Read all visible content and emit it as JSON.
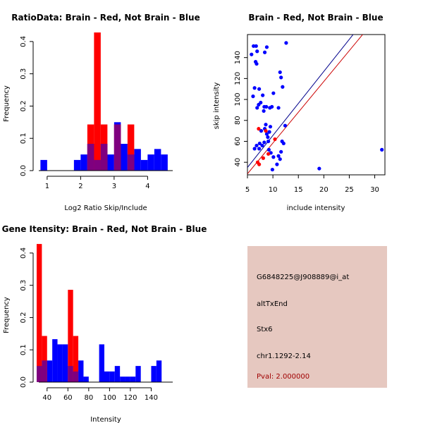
{
  "chart_data": [
    {
      "type": "histogram",
      "title": "RatioData: Brain - Red, Not Brain - Blue",
      "xlabel": "Log2 Ratio Skip/Include",
      "ylabel": "Frequency",
      "xlim": [
        0.75,
        4.75
      ],
      "ylim": [
        0,
        0.45
      ],
      "xticks": [
        1,
        2,
        3,
        4
      ],
      "xtick_labels": [
        "1",
        "2",
        "3",
        "4"
      ],
      "yticks": [
        0.0,
        0.1,
        0.2,
        0.3,
        0.4
      ],
      "ytick_labels": [
        "0.0",
        "0.1",
        "0.2",
        "0.3",
        "0.4"
      ],
      "bin_width": 0.2,
      "series": [
        {
          "name": "Not Brain",
          "color": "#0000ff",
          "bin_starts": [
            0.8,
            1.0,
            1.2,
            1.4,
            1.6,
            1.8,
            2.0,
            2.2,
            2.4,
            2.6,
            2.8,
            3.0,
            3.2,
            3.4,
            3.6,
            3.8,
            4.0,
            4.2,
            4.4
          ],
          "values": [
            0.033,
            0,
            0,
            0,
            0,
            0.033,
            0.05,
            0.083,
            0.033,
            0.083,
            0.05,
            0.15,
            0.083,
            0.05,
            0.067,
            0.033,
            0.05,
            0.067,
            0.05
          ]
        },
        {
          "name": "Brain",
          "color": "#ff0000",
          "bin_starts": [
            2.2,
            2.4,
            2.6,
            3.0,
            3.4
          ],
          "values": [
            0.143,
            0.428,
            0.143,
            0.143,
            0.143
          ]
        }
      ],
      "overlap_color": "#7f007f"
    },
    {
      "type": "scatter",
      "title": "Brain - Red, Not Brain - Blue",
      "xlabel": "include intensity",
      "ylabel": "skip intensity",
      "xlim": [
        5,
        32
      ],
      "ylim": [
        28,
        162
      ],
      "xticks": [
        5,
        10,
        15,
        20,
        25,
        30
      ],
      "xtick_labels": [
        "5",
        "10",
        "15",
        "20",
        "25",
        "30"
      ],
      "yticks": [
        40,
        60,
        80,
        100,
        120,
        140
      ],
      "ytick_labels": [
        "40",
        "60",
        "80",
        "100",
        "120",
        "140"
      ],
      "series": [
        {
          "name": "Not Brain",
          "color": "#0000ff",
          "points": [
            [
              5.8,
              143
            ],
            [
              6.2,
              151
            ],
            [
              6.7,
              151
            ],
            [
              6.9,
              146
            ],
            [
              6.6,
              136
            ],
            [
              6.8,
              134
            ],
            [
              6.1,
              103
            ],
            [
              6.4,
              111
            ],
            [
              7.3,
              110
            ],
            [
              6.9,
              92
            ],
            [
              7.2,
              95
            ],
            [
              8.0,
              104
            ],
            [
              7.6,
              97
            ],
            [
              8.2,
              89
            ],
            [
              8.4,
              145
            ],
            [
              8.8,
              150
            ],
            [
              8.3,
              93
            ],
            [
              8.7,
              93
            ],
            [
              9.4,
              92
            ],
            [
              10.1,
              106
            ],
            [
              9.8,
              93
            ],
            [
              11.1,
              92
            ],
            [
              11.4,
              126
            ],
            [
              11.6,
              121
            ],
            [
              11.9,
              112
            ],
            [
              12.6,
              154
            ],
            [
              12.4,
              75
            ],
            [
              11.8,
              60
            ],
            [
              12.1,
              58
            ],
            [
              11.6,
              50
            ],
            [
              11.1,
              46
            ],
            [
              11.4,
              43
            ],
            [
              10.8,
              38
            ],
            [
              9.9,
              33
            ],
            [
              10.1,
              45
            ],
            [
              9.6,
              49
            ],
            [
              9.2,
              52
            ],
            [
              9.1,
              60
            ],
            [
              9.0,
              64
            ],
            [
              8.8,
              67
            ],
            [
              8.4,
              72
            ],
            [
              9.3,
              69
            ],
            [
              8.6,
              76
            ],
            [
              7.7,
              70
            ],
            [
              7.4,
              58
            ],
            [
              6.8,
              56
            ],
            [
              6.4,
              53
            ],
            [
              7.3,
              53
            ],
            [
              7.9,
              56
            ],
            [
              8.3,
              59
            ],
            [
              9.5,
              74
            ],
            [
              19.1,
              34
            ],
            [
              31.4,
              52
            ]
          ]
        },
        {
          "name": "Brain",
          "color": "#ff0000",
          "points": [
            [
              7.2,
              72
            ],
            [
              7.0,
              40
            ],
            [
              7.3,
              38
            ],
            [
              8.1,
              44
            ],
            [
              9.1,
              48
            ],
            [
              10.4,
              62
            ],
            [
              8.6,
              70
            ]
          ]
        }
      ],
      "lines": [
        {
          "name": "blue-fit",
          "color": "#00008b",
          "slope": 6.12,
          "intercept": 4.4
        },
        {
          "name": "red-fit",
          "color": "#cc0000",
          "slope": 5.88,
          "intercept": -0.4
        }
      ]
    },
    {
      "type": "histogram",
      "title": "Gene Itensity: Brain - Red, Not Brain - Blue",
      "xlabel": "Intensity",
      "ylabel": "Frequency",
      "xlim": [
        30,
        160
      ],
      "ylim": [
        0,
        0.45
      ],
      "xticks": [
        40,
        60,
        80,
        100,
        120,
        140
      ],
      "xtick_labels": [
        "40",
        "60",
        "80",
        "100",
        "120",
        "140"
      ],
      "yticks": [
        0.0,
        0.1,
        0.2,
        0.3,
        0.4
      ],
      "ytick_labels": [
        "0.0",
        "0.1",
        "0.2",
        "0.3",
        "0.4"
      ],
      "bin_width": 5,
      "series": [
        {
          "name": "Not Brain",
          "color": "#0000ff",
          "bin_starts": [
            30,
            35,
            40,
            45,
            50,
            55,
            60,
            65,
            70,
            75,
            80,
            85,
            90,
            95,
            100,
            105,
            110,
            115,
            120,
            125,
            130,
            135,
            140,
            145,
            150
          ],
          "values": [
            0.05,
            0.067,
            0.067,
            0.133,
            0.117,
            0.117,
            0.05,
            0.033,
            0.067,
            0.017,
            0,
            0,
            0.117,
            0.033,
            0.033,
            0.05,
            0.017,
            0.017,
            0.017,
            0.05,
            0,
            0,
            0.05,
            0.067,
            0
          ]
        },
        {
          "name": "Brain",
          "color": "#ff0000",
          "bin_starts": [
            30,
            35,
            60,
            65
          ],
          "values": [
            0.428,
            0.143,
            0.286,
            0.143
          ]
        }
      ],
      "overlap_color": "#7f007f"
    }
  ],
  "info_panel": {
    "probe_id": "G6848225@J908889@i_at",
    "event_type": "altTxEnd",
    "gene_symbol": "Stx6",
    "location": "chr1.1292-2.14",
    "pval": "Pval: 2.000000",
    "panel_color": "#e6c8c0",
    "pval_color": "#a00000"
  }
}
